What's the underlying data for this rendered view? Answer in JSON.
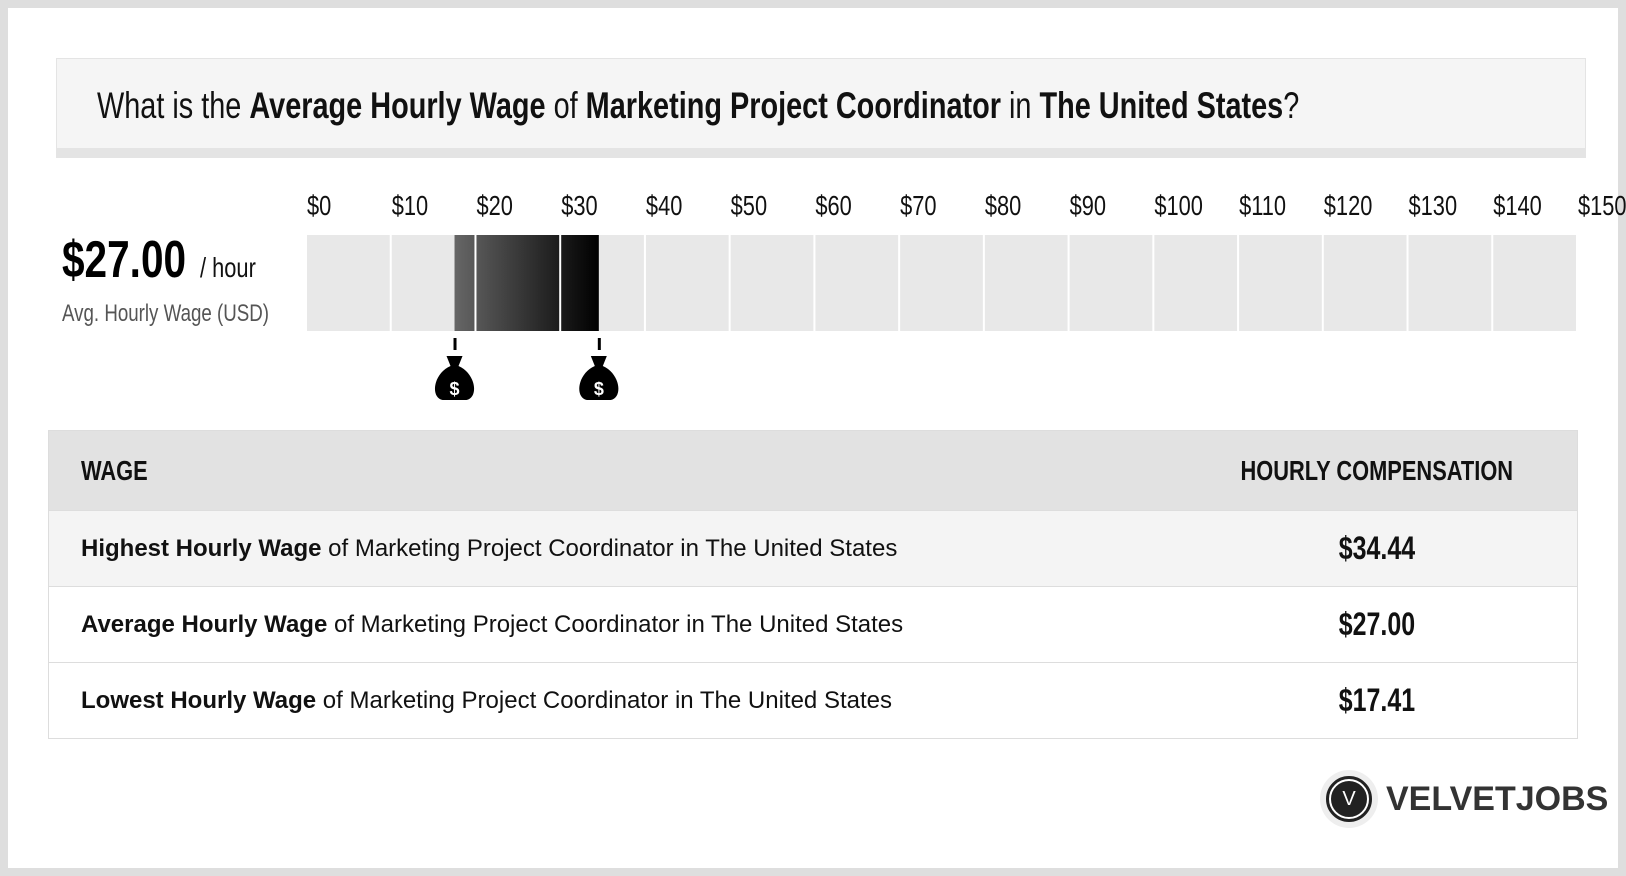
{
  "title": {
    "p1": "What is the ",
    "b1": "Average Hourly Wage",
    "p2": " of ",
    "b2": "Marketing Project Coordinator",
    "p3": " in ",
    "b3": "The United States",
    "p4": "?"
  },
  "summary": {
    "value": "$27.00",
    "unit": "/ hour",
    "label": "Avg. Hourly Wage (USD)"
  },
  "chart_data": {
    "type": "bar",
    "tick_labels": [
      "$0",
      "$10",
      "$20",
      "$30",
      "$40",
      "$50",
      "$60",
      "$70",
      "$80",
      "$90",
      "$100",
      "$110",
      "$120",
      "$130",
      "$140",
      "$150+"
    ],
    "xlim": [
      0,
      150
    ],
    "range": {
      "low": 17.41,
      "average": 27.0,
      "high": 34.44
    },
    "markers": [
      {
        "value": 17.41,
        "icon": "money-bag-icon"
      },
      {
        "value": 34.44,
        "icon": "money-bag-icon"
      }
    ],
    "colors": {
      "track": "#e8e8e8",
      "fill_start": "#666666",
      "fill_end": "#000000"
    }
  },
  "table": {
    "headers": [
      "WAGE",
      "HOURLY COMPENSATION"
    ],
    "rows": [
      {
        "bold": "Highest Hourly Wage",
        "rest": " of Marketing Project Coordinator in The United States",
        "value": "$34.44"
      },
      {
        "bold": "Average Hourly Wage",
        "rest": " of Marketing Project Coordinator in The United States",
        "value": "$27.00"
      },
      {
        "bold": "Lowest Hourly Wage",
        "rest": " of Marketing Project Coordinator in The United States",
        "value": "$17.41"
      }
    ]
  },
  "logo": {
    "letter": "V",
    "text": "VELVETJOBS"
  }
}
